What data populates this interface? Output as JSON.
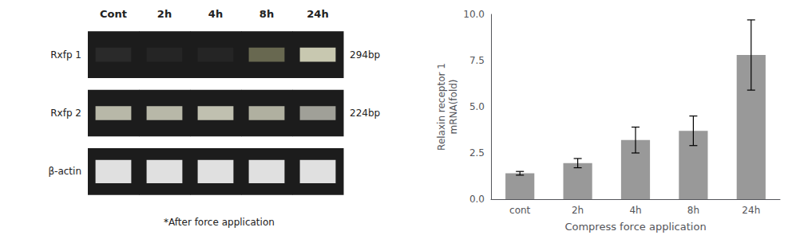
{
  "chart_data": [
    {
      "type": "gel",
      "categories": [
        "Cont",
        "2h",
        "4h",
        "8h",
        "24h"
      ],
      "color": "#1c1c1c",
      "series": [
        {
          "name": "Rxfp 1",
          "annotation": "294bp",
          "colors": [
            "#2a2a2a",
            "#252525",
            "#252525",
            "#686850",
            "#c8c8b0"
          ]
        },
        {
          "name": "Rxfp 2",
          "annotation": "224bp",
          "colors": [
            "#b8b8a8",
            "#b8b8a8",
            "#c0c0b0",
            "#b0b0a0",
            "#a0a098"
          ]
        },
        {
          "name": "β-actin",
          "colors": [
            "#e0e0e0",
            "#e0e0e0",
            "#e0e0e0",
            "#e0e0e0",
            "#e0e0e0"
          ]
        }
      ],
      "annotations": [
        "*After force application"
      ]
    },
    {
      "type": "bar",
      "categories": [
        "cont",
        "2h",
        "4h",
        "8h",
        "24h"
      ],
      "values": [
        1.4,
        1.95,
        3.2,
        3.7,
        7.8
      ],
      "errors": [
        0.1,
        0.25,
        0.7,
        0.8,
        1.9
      ],
      "color": "#999999",
      "xlabel": "Compress force application",
      "ylabel": "Relaxin receptor 1\nmRNA(fold)",
      "ylim": [
        0,
        10.0
      ],
      "yticks": [
        {
          "value": 0.0,
          "label": "0.0"
        },
        2.5,
        {
          "value": 5.0,
          "label": "5.0"
        },
        7.5,
        {
          "value": 10.0,
          "label": "10.0"
        }
      ],
      "grid": false
    }
  ]
}
